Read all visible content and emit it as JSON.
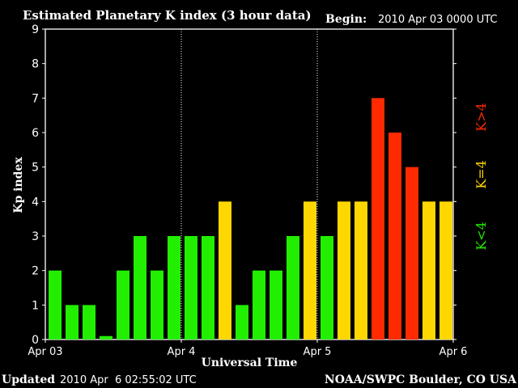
{
  "chart_data": {
    "type": "bar",
    "title": "Estimated Planetary K index (3 hour data)",
    "begin_label": "Begin:",
    "begin_value": "2010 Apr 03 0000 UTC",
    "xlabel": "Universal Time",
    "ylabel": "Kp index",
    "ylim": [
      0,
      9
    ],
    "yticks": [
      "0",
      "1",
      "2",
      "3",
      "4",
      "5",
      "6",
      "7",
      "8",
      "9"
    ],
    "xticks": [
      "Apr 03",
      "Apr 4",
      "Apr 5",
      "Apr 6"
    ],
    "day_dividers": [
      1,
      2
    ],
    "grid": false,
    "values": [
      2,
      1,
      1,
      0.1,
      2,
      3,
      2,
      3,
      3,
      3,
      4,
      1,
      2,
      2,
      3,
      4,
      3,
      4,
      4,
      7,
      6,
      5,
      4,
      4
    ],
    "legend": {
      "low": {
        "text": "K<4",
        "color": "#22ee00"
      },
      "mid": {
        "text": "K=4",
        "color": "#ffd700"
      },
      "high": {
        "text": "K>4",
        "color": "#ff2a00"
      }
    }
  },
  "footer": {
    "updated_label": "Updated",
    "updated_value": "2010 Apr  6 02:55:02 UTC",
    "source": "NOAA/SWPC Boulder, CO USA"
  }
}
